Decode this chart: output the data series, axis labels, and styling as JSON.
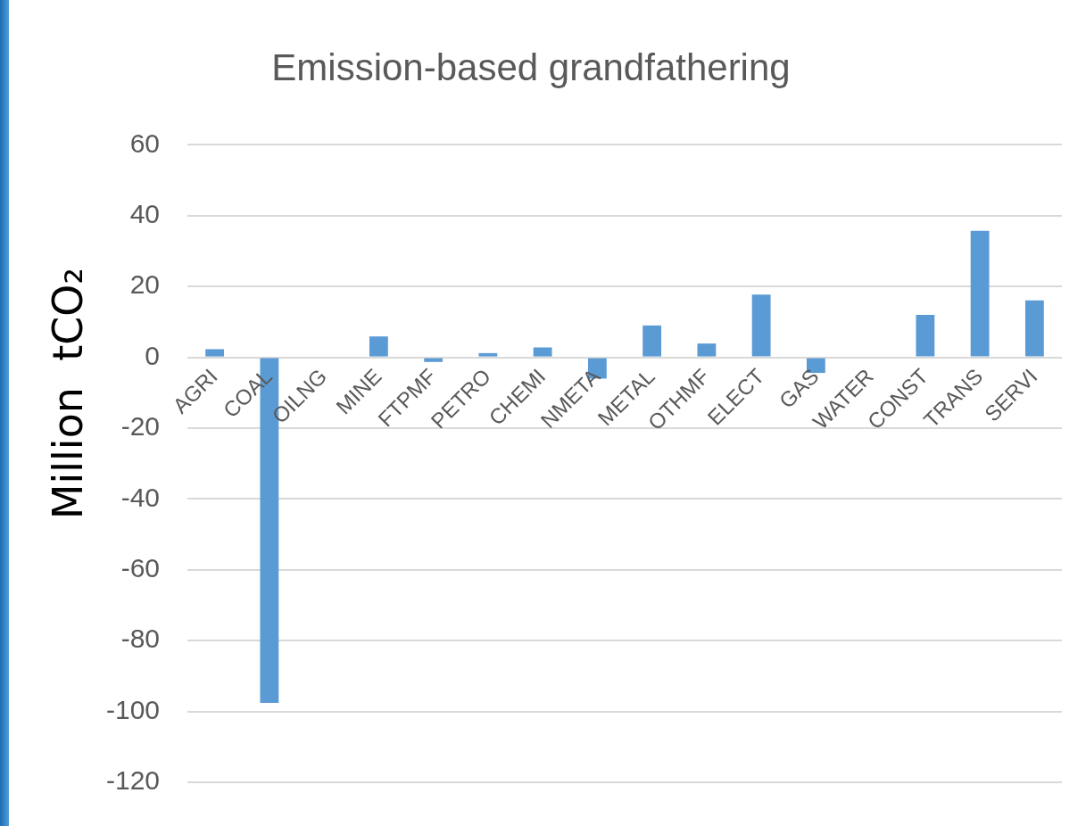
{
  "chart_data": {
    "type": "bar",
    "title": "Emission-based grandfathering",
    "ylabel": "Million  tCO₂",
    "categories": [
      "AGRI",
      "COAL",
      "OILNG",
      "MINE",
      "FTPMF",
      "PETRO",
      "CHEMI",
      "NMETA",
      "METAL",
      "OTHMF",
      "ELECT",
      "GAS",
      "WATER",
      "CONST",
      "TRANS",
      "SERVI"
    ],
    "values": [
      2.3,
      -97.6,
      0,
      5.9,
      -1.3,
      1.2,
      2.8,
      -6,
      9,
      3.9,
      17.7,
      -4.4,
      0,
      12,
      35.7,
      16.1
    ],
    "color": "#5b9bd5",
    "ylim": [
      -120,
      60
    ],
    "yticks": [
      -120,
      -100,
      -80,
      -60,
      -40,
      -20,
      0,
      20,
      40,
      60
    ],
    "grid": "y"
  }
}
